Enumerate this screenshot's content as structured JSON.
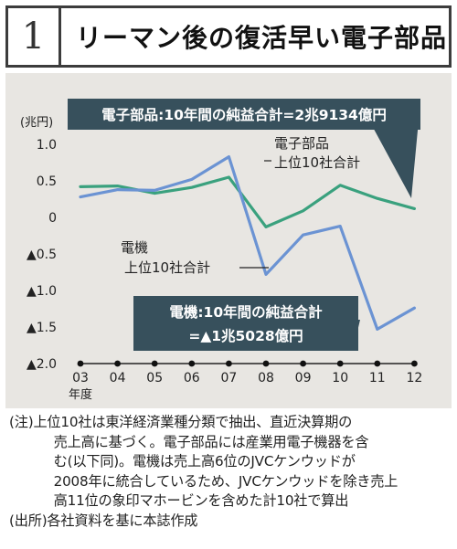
{
  "figure": {
    "number": "1",
    "title": "リーマン後の復活早い電子部品"
  },
  "chart_data": {
    "type": "line",
    "unit_label": "(兆円)",
    "categories": [
      "03",
      "04",
      "05",
      "06",
      "07",
      "08",
      "09",
      "10",
      "11",
      "12"
    ],
    "x_axis_suffix": "年度",
    "ylim": [
      -2.0,
      1.0
    ],
    "y_ticks": [
      {
        "value": 1.0,
        "label": "1.0"
      },
      {
        "value": 0.5,
        "label": "0.5"
      },
      {
        "value": 0,
        "label": "0"
      },
      {
        "value": -0.5,
        "label": "▲0.5"
      },
      {
        "value": -1.0,
        "label": "▲1.0"
      },
      {
        "value": -1.5,
        "label": "▲1.5"
      },
      {
        "value": -2.0,
        "label": "▲2.0"
      }
    ],
    "grid": false,
    "series": [
      {
        "name_line1": "電子部品",
        "name_line2": "上位10社合計",
        "color": "#3aa17e",
        "values": [
          0.42,
          0.43,
          0.33,
          0.41,
          0.55,
          -0.13,
          0.09,
          0.44,
          0.26,
          0.12
        ]
      },
      {
        "name_line1": "電機",
        "name_line2": "上位10社合計",
        "color": "#6b93d3",
        "values": [
          0.28,
          0.38,
          0.37,
          0.52,
          0.83,
          -0.78,
          -0.24,
          -0.12,
          -1.53,
          -1.24
        ]
      }
    ],
    "callouts": {
      "top": "電子部品:10年間の純益合計=2兆9134億円",
      "bottom_line1": "電機:10年間の純益合計",
      "bottom_line2": "=▲1兆5028億円"
    }
  },
  "notes": {
    "line1": "(注)上位10社は東洋経済業種分類で抽出、直近決算期の",
    "line2": "売上高に基づく。電子部品には産業用電子機器を含",
    "line3": "む(以下同)。電機は売上高6位のJVCケンウッドが",
    "line4": "2008年に統合しているため、JVCケンウッドを除き売上",
    "line5": "高11位の象印マホービンを含めた計10社で算出",
    "source": "(出所)各社資料を基に本誌作成"
  }
}
